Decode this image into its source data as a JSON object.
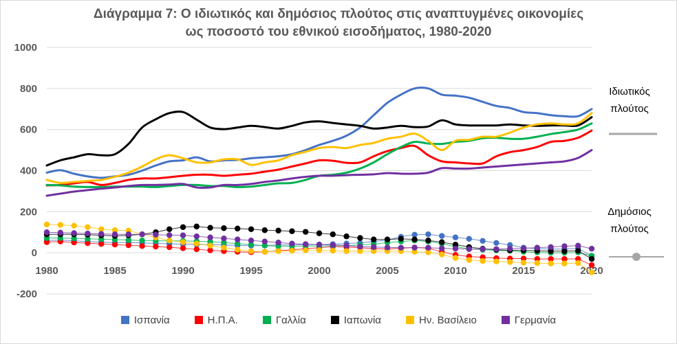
{
  "chart_data": {
    "type": "line",
    "title_line1": "Διάγραμμα 7: Ο ιδιωτικός και δημόσιος πλούτος στις αναπτυγμένες οικονομίες",
    "title_line2": "ως ποσοστό του εθνικού εισοδήματος, 1980-2020",
    "xlim": [
      1980,
      2020
    ],
    "ylim": [
      -200,
      1000
    ],
    "x_ticks": [
      "1980",
      "1985",
      "1990",
      "1995",
      "2000",
      "2005",
      "2010",
      "2015",
      "2020"
    ],
    "y_ticks": [
      "-200",
      "0",
      "200",
      "400",
      "600",
      "800",
      "1000"
    ],
    "gridlines": true,
    "annotations": {
      "private": [
        "Ιδιωτικός",
        "πλούτος"
      ],
      "public": [
        "Δημόσιος",
        "πλούτος"
      ]
    },
    "legend_position": "bottom",
    "x": [
      1980,
      1981,
      1982,
      1983,
      1984,
      1985,
      1986,
      1987,
      1988,
      1989,
      1990,
      1991,
      1992,
      1993,
      1994,
      1995,
      1996,
      1997,
      1998,
      1999,
      2000,
      2001,
      2002,
      2003,
      2004,
      2005,
      2006,
      2007,
      2008,
      2009,
      2010,
      2011,
      2012,
      2013,
      2014,
      2015,
      2016,
      2017,
      2018,
      2019,
      2020
    ],
    "series": [
      {
        "name": "Ισπανία",
        "color": "#4472c4",
        "private": [
          390,
          402,
          385,
          372,
          365,
          372,
          380,
          400,
          425,
          445,
          450,
          465,
          445,
          450,
          452,
          460,
          465,
          470,
          480,
          500,
          525,
          545,
          570,
          610,
          670,
          730,
          770,
          800,
          800,
          770,
          765,
          755,
          735,
          715,
          705,
          685,
          680,
          670,
          665,
          665,
          700
        ],
        "public": [
          60,
          62,
          58,
          55,
          52,
          50,
          50,
          48,
          46,
          44,
          42,
          40,
          40,
          38,
          36,
          35,
          36,
          38,
          38,
          40,
          40,
          42,
          45,
          48,
          55,
          62,
          78,
          88,
          90,
          82,
          75,
          68,
          58,
          48,
          38,
          25,
          20,
          18,
          18,
          22,
          -15
        ]
      },
      {
        "name": "Η.Π.Α.",
        "color": "#ff0000",
        "private": [
          328,
          330,
          338,
          345,
          330,
          340,
          355,
          362,
          362,
          368,
          375,
          380,
          380,
          375,
          380,
          385,
          395,
          405,
          420,
          435,
          450,
          448,
          438,
          440,
          470,
          495,
          510,
          520,
          475,
          445,
          440,
          435,
          435,
          470,
          490,
          500,
          515,
          540,
          545,
          560,
          595
        ],
        "public": [
          52,
          55,
          50,
          47,
          43,
          40,
          37,
          33,
          30,
          27,
          22,
          17,
          12,
          8,
          5,
          3,
          5,
          10,
          15,
          20,
          25,
          30,
          28,
          25,
          20,
          18,
          22,
          26,
          22,
          5,
          -10,
          -18,
          -22,
          -26,
          -28,
          -28,
          -30,
          -30,
          -30,
          -30,
          -60
        ]
      },
      {
        "name": "Γαλλία",
        "color": "#00b050",
        "private": [
          330,
          328,
          322,
          320,
          320,
          322,
          322,
          322,
          320,
          325,
          330,
          330,
          325,
          325,
          320,
          322,
          330,
          338,
          340,
          355,
          375,
          380,
          390,
          410,
          440,
          480,
          515,
          540,
          532,
          530,
          540,
          545,
          558,
          560,
          555,
          555,
          565,
          578,
          588,
          600,
          630
        ],
        "public": [
          72,
          72,
          70,
          68,
          66,
          64,
          62,
          60,
          58,
          58,
          58,
          56,
          54,
          50,
          45,
          40,
          35,
          32,
          32,
          33,
          33,
          34,
          35,
          38,
          42,
          50,
          55,
          60,
          55,
          45,
          30,
          20,
          15,
          12,
          10,
          5,
          2,
          0,
          0,
          2,
          -15
        ]
      },
      {
        "name": "Ιαπωνία",
        "color": "#000000",
        "private": [
          425,
          450,
          465,
          480,
          475,
          480,
          530,
          610,
          650,
          680,
          685,
          648,
          610,
          602,
          610,
          618,
          612,
          605,
          618,
          635,
          640,
          632,
          625,
          618,
          605,
          610,
          618,
          612,
          615,
          645,
          625,
          620,
          620,
          620,
          625,
          620,
          618,
          620,
          620,
          620,
          660
        ],
        "public": [
          90,
          90,
          90,
          88,
          85,
          82,
          85,
          90,
          100,
          115,
          125,
          128,
          122,
          120,
          118,
          115,
          110,
          108,
          105,
          102,
          95,
          90,
          80,
          72,
          65,
          65,
          68,
          65,
          60,
          52,
          40,
          28,
          20,
          15,
          12,
          12,
          10,
          8,
          8,
          10,
          -30
        ]
      },
      {
        "name": "Ην. Βασίλειο",
        "color": "#ffc000",
        "private": [
          355,
          340,
          345,
          350,
          355,
          370,
          390,
          420,
          455,
          475,
          460,
          440,
          440,
          455,
          455,
          428,
          440,
          450,
          475,
          492,
          510,
          515,
          510,
          525,
          535,
          555,
          565,
          580,
          545,
          500,
          545,
          550,
          565,
          565,
          585,
          610,
          625,
          630,
          625,
          630,
          680
        ],
        "public": [
          138,
          136,
          132,
          125,
          115,
          110,
          108,
          90,
          75,
          60,
          52,
          45,
          35,
          25,
          15,
          8,
          5,
          8,
          10,
          12,
          12,
          10,
          8,
          8,
          8,
          8,
          8,
          5,
          2,
          -8,
          -25,
          -35,
          -40,
          -42,
          -45,
          -48,
          -50,
          -52,
          -52,
          -50,
          -95
        ]
      },
      {
        "name": "Γερμανία",
        "color": "#7030a0",
        "private": [
          278,
          288,
          298,
          305,
          312,
          318,
          325,
          330,
          330,
          332,
          335,
          318,
          318,
          330,
          330,
          335,
          345,
          352,
          362,
          370,
          375,
          375,
          378,
          380,
          382,
          388,
          385,
          385,
          390,
          412,
          410,
          410,
          415,
          420,
          425,
          430,
          435,
          440,
          445,
          462,
          500
        ],
        "public": [
          100,
          98,
          96,
          94,
          92,
          90,
          90,
          90,
          88,
          86,
          85,
          80,
          75,
          70,
          65,
          60,
          55,
          50,
          45,
          42,
          40,
          38,
          35,
          30,
          28,
          26,
          25,
          25,
          25,
          22,
          20,
          18,
          18,
          18,
          20,
          22,
          25,
          28,
          32,
          35,
          20
        ]
      }
    ]
  }
}
